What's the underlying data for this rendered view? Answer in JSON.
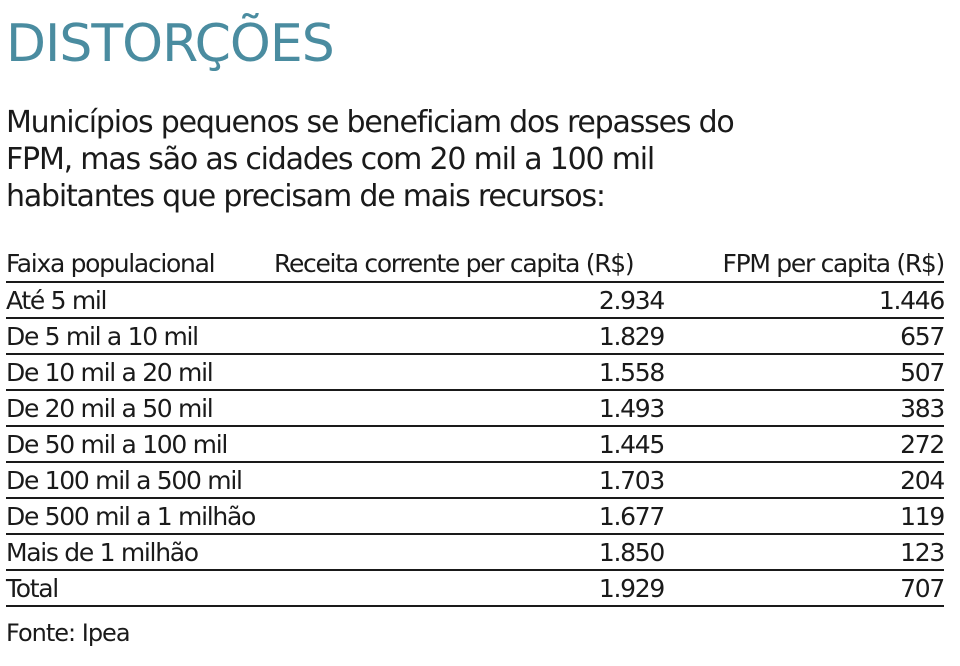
{
  "title": "DISTORÇÕES",
  "subtitle": "Municípios pequenos se beneficiam dos repasses do FPM, mas são as cidades com 20 mil a 100 mil habitantes que precisam de mais recursos:",
  "source": "Fonte: Ipea",
  "colors": {
    "title": "#4a8ca0",
    "text": "#1a1a1a"
  },
  "chart_data": {
    "type": "table",
    "columns": [
      "Faixa populacional",
      "Receita corrente per capita (R$)",
      "FPM per capita (R$)"
    ],
    "rows": [
      {
        "faixa": "Até 5 mil",
        "receita": "2.934",
        "fpm": "1.446"
      },
      {
        "faixa": "De 5 mil a 10 mil",
        "receita": "1.829",
        "fpm": "657"
      },
      {
        "faixa": "De 10 mil a 20 mil",
        "receita": "1.558",
        "fpm": "507"
      },
      {
        "faixa": "De 20 mil a 50 mil",
        "receita": "1.493",
        "fpm": "383"
      },
      {
        "faixa": "De 50 mil a 100 mil",
        "receita": "1.445",
        "fpm": "272"
      },
      {
        "faixa": "De 100 mil a 500 mil",
        "receita": "1.703",
        "fpm": "204"
      },
      {
        "faixa": "De 500 mil a 1 milhão",
        "receita": "1.677",
        "fpm": "119"
      },
      {
        "faixa": "Mais de 1 milhão",
        "receita": "1.850",
        "fpm": "123"
      },
      {
        "faixa": "Total",
        "receita": "1.929",
        "fpm": "707"
      }
    ]
  }
}
